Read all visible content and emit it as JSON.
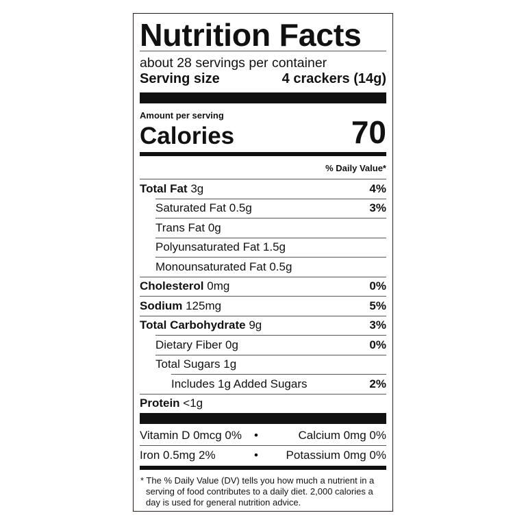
{
  "title": "Nutrition Facts",
  "servings_per_container": "about 28 servings per container",
  "serving_size_label": "Serving size",
  "serving_size_value": "4 crackers (14g)",
  "amount_per_serving": "Amount per serving",
  "calories_label": "Calories",
  "calories_value": "70",
  "daily_value_header": "% Daily Value*",
  "nutrients": [
    {
      "name": "Total Fat",
      "amount": "3g",
      "dv": "4%"
    },
    {
      "name": "Saturated Fat",
      "amount": "0.5g",
      "dv": "3%"
    },
    {
      "name": "Trans Fat",
      "amount": "0g",
      "dv": ""
    },
    {
      "name": "Polyunsaturated Fat",
      "amount": "1.5g",
      "dv": ""
    },
    {
      "name": "Monounsaturated Fat",
      "amount": "0.5g",
      "dv": ""
    },
    {
      "name": "Cholesterol",
      "amount": "0mg",
      "dv": "0%"
    },
    {
      "name": "Sodium",
      "amount": "125mg",
      "dv": "5%"
    },
    {
      "name": "Total Carbohydrate",
      "amount": "9g",
      "dv": "3%"
    },
    {
      "name": "Dietary Fiber",
      "amount": "0g",
      "dv": "0%"
    },
    {
      "name": "Total Sugars",
      "amount": "1g",
      "dv": ""
    },
    {
      "name": "Includes 1g Added Sugars",
      "amount": "",
      "dv": "2%"
    },
    {
      "name": "Protein",
      "amount": "<1g",
      "dv": ""
    }
  ],
  "vitamins": [
    {
      "left": "Vitamin D 0mcg 0%",
      "right": "Calcium 0mg 0%"
    },
    {
      "left": "Iron 0.5mg 2%",
      "right": "Potassium 0mg 0%"
    }
  ],
  "bullet": "•",
  "footnote": "* The % Daily Value (DV) tells you how much a nutrient in a serving of food contributes to a daily diet. 2,000 calories a day is used for general nutrition advice."
}
